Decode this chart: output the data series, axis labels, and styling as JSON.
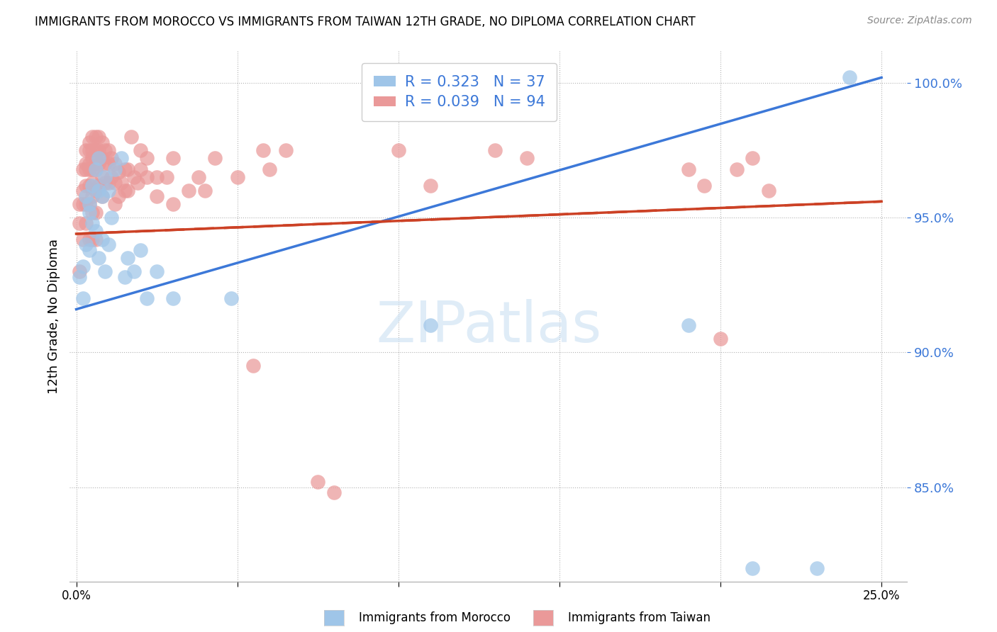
{
  "title": "IMMIGRANTS FROM MOROCCO VS IMMIGRANTS FROM TAIWAN 12TH GRADE, NO DIPLOMA CORRELATION CHART",
  "source": "Source: ZipAtlas.com",
  "ylabel": "12th Grade, No Diploma",
  "legend_label_blue": "Immigrants from Morocco",
  "legend_label_pink": "Immigrants from Taiwan",
  "R_blue": 0.323,
  "N_blue": 37,
  "R_pink": 0.039,
  "N_pink": 94,
  "xlim": [
    -0.002,
    0.258
  ],
  "ylim": [
    0.815,
    1.012
  ],
  "yticks": [
    0.85,
    0.9,
    0.95,
    1.0
  ],
  "ytick_labels": [
    "85.0%",
    "90.0%",
    "95.0%",
    "100.0%"
  ],
  "xtick_positions": [
    0.0,
    0.05,
    0.1,
    0.15,
    0.2,
    0.25
  ],
  "xtick_labels": [
    "0.0%",
    "",
    "",
    "",
    "",
    "25.0%"
  ],
  "color_blue": "#9fc5e8",
  "color_pink": "#ea9999",
  "color_line_blue": "#3c78d8",
  "color_line_pink": "#cc4125",
  "watermark_color": "#cfe2f3",
  "blue_line_x0": 0.0,
  "blue_line_y0": 0.916,
  "blue_line_x1": 0.25,
  "blue_line_y1": 1.002,
  "pink_line_x0": 0.0,
  "pink_line_y0": 0.944,
  "pink_line_x1": 0.25,
  "pink_line_y1": 0.956,
  "blue_scatter_x": [
    0.001,
    0.002,
    0.002,
    0.003,
    0.003,
    0.004,
    0.004,
    0.004,
    0.005,
    0.005,
    0.006,
    0.006,
    0.007,
    0.007,
    0.007,
    0.008,
    0.008,
    0.009,
    0.009,
    0.01,
    0.01,
    0.011,
    0.012,
    0.014,
    0.015,
    0.016,
    0.018,
    0.02,
    0.022,
    0.025,
    0.03,
    0.048,
    0.11,
    0.19,
    0.21,
    0.23,
    0.24
  ],
  "blue_scatter_y": [
    0.928,
    0.932,
    0.92,
    0.958,
    0.94,
    0.955,
    0.938,
    0.952,
    0.948,
    0.962,
    0.968,
    0.945,
    0.96,
    0.972,
    0.935,
    0.958,
    0.942,
    0.965,
    0.93,
    0.94,
    0.96,
    0.95,
    0.968,
    0.972,
    0.928,
    0.935,
    0.93,
    0.938,
    0.92,
    0.93,
    0.92,
    0.92,
    0.91,
    0.91,
    0.82,
    0.82,
    1.002
  ],
  "pink_scatter_x": [
    0.001,
    0.001,
    0.001,
    0.002,
    0.002,
    0.002,
    0.002,
    0.003,
    0.003,
    0.003,
    0.003,
    0.003,
    0.003,
    0.004,
    0.004,
    0.004,
    0.004,
    0.004,
    0.004,
    0.004,
    0.005,
    0.005,
    0.005,
    0.005,
    0.005,
    0.005,
    0.005,
    0.005,
    0.006,
    0.006,
    0.006,
    0.006,
    0.006,
    0.006,
    0.006,
    0.007,
    0.007,
    0.007,
    0.007,
    0.008,
    0.008,
    0.008,
    0.008,
    0.009,
    0.009,
    0.009,
    0.01,
    0.01,
    0.01,
    0.011,
    0.011,
    0.012,
    0.012,
    0.012,
    0.013,
    0.013,
    0.014,
    0.015,
    0.015,
    0.016,
    0.016,
    0.017,
    0.018,
    0.019,
    0.02,
    0.02,
    0.022,
    0.022,
    0.025,
    0.025,
    0.028,
    0.03,
    0.03,
    0.035,
    0.038,
    0.04,
    0.043,
    0.05,
    0.055,
    0.058,
    0.06,
    0.065,
    0.075,
    0.08,
    0.1,
    0.11,
    0.13,
    0.14,
    0.19,
    0.195,
    0.2,
    0.205,
    0.21,
    0.215
  ],
  "pink_scatter_y": [
    0.955,
    0.948,
    0.93,
    0.968,
    0.96,
    0.955,
    0.942,
    0.975,
    0.97,
    0.968,
    0.962,
    0.955,
    0.948,
    0.978,
    0.975,
    0.97,
    0.968,
    0.962,
    0.955,
    0.942,
    0.98,
    0.975,
    0.972,
    0.968,
    0.963,
    0.958,
    0.952,
    0.942,
    0.98,
    0.975,
    0.972,
    0.968,
    0.96,
    0.952,
    0.942,
    0.98,
    0.975,
    0.97,
    0.962,
    0.978,
    0.972,
    0.965,
    0.958,
    0.975,
    0.97,
    0.963,
    0.975,
    0.97,
    0.963,
    0.972,
    0.965,
    0.97,
    0.963,
    0.955,
    0.967,
    0.958,
    0.963,
    0.968,
    0.96,
    0.968,
    0.96,
    0.98,
    0.965,
    0.963,
    0.975,
    0.968,
    0.972,
    0.965,
    0.965,
    0.958,
    0.965,
    0.955,
    0.972,
    0.96,
    0.965,
    0.96,
    0.972,
    0.965,
    0.895,
    0.975,
    0.968,
    0.975,
    0.852,
    0.848,
    0.975,
    0.962,
    0.975,
    0.972,
    0.968,
    0.962,
    0.905,
    0.968,
    0.972,
    0.96
  ]
}
